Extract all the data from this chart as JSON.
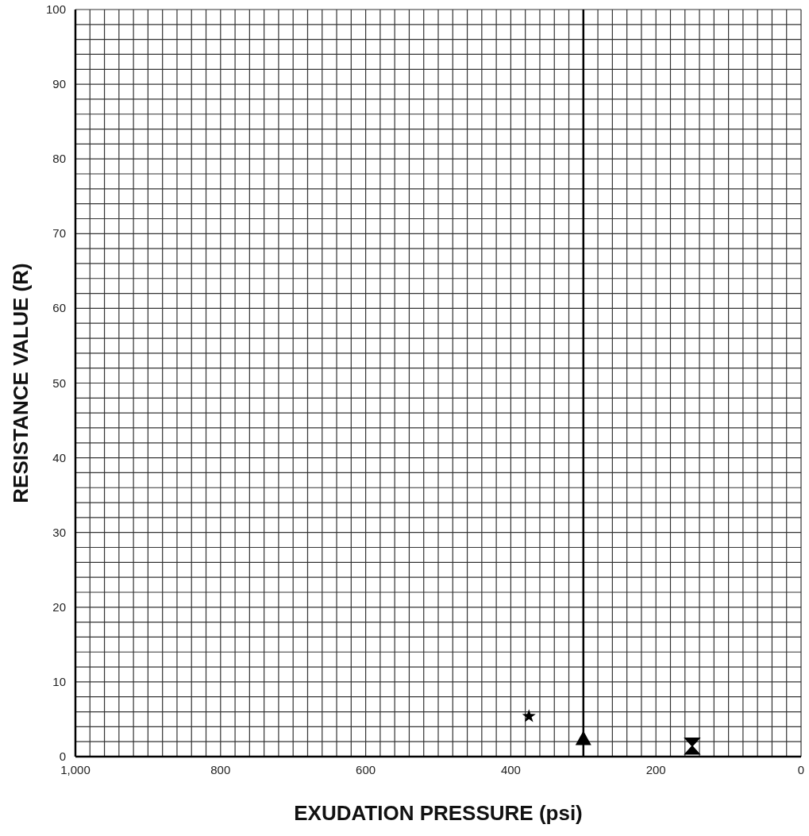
{
  "chart_data": {
    "type": "scatter",
    "xlabel": "EXUDATION PRESSURE (psi)",
    "ylabel": "RESISTANCE VALUE (R)",
    "xlim": [
      1000,
      0
    ],
    "ylim": [
      0,
      100
    ],
    "xticks": [
      {
        "value": 1000,
        "label": "1,000"
      },
      {
        "value": 980,
        "label": null
      },
      {
        "value": 960,
        "label": null
      },
      {
        "value": 940,
        "label": null
      },
      {
        "value": 920,
        "label": null
      },
      {
        "value": 900,
        "label": null
      },
      {
        "value": 880,
        "label": null
      },
      {
        "value": 860,
        "label": null
      },
      {
        "value": 840,
        "label": null
      },
      {
        "value": 820,
        "label": null
      },
      800,
      {
        "value": 780,
        "label": null
      },
      {
        "value": 760,
        "label": null
      },
      {
        "value": 740,
        "label": null
      },
      {
        "value": 720,
        "label": null
      },
      {
        "value": 700,
        "label": null
      },
      {
        "value": 680,
        "label": null
      },
      {
        "value": 660,
        "label": null
      },
      {
        "value": 640,
        "label": null
      },
      {
        "value": 620,
        "label": null
      },
      600,
      {
        "value": 580,
        "label": null
      },
      {
        "value": 560,
        "label": null
      },
      {
        "value": 540,
        "label": null
      },
      {
        "value": 520,
        "label": null
      },
      {
        "value": 500,
        "label": null
      },
      {
        "value": 480,
        "label": null
      },
      {
        "value": 460,
        "label": null
      },
      {
        "value": 440,
        "label": null
      },
      {
        "value": 420,
        "label": null
      },
      400,
      {
        "value": 380,
        "label": null
      },
      {
        "value": 360,
        "label": null
      },
      {
        "value": 340,
        "label": null
      },
      {
        "value": 320,
        "label": null
      },
      {
        "value": 300,
        "label": null
      },
      {
        "value": 280,
        "label": null
      },
      {
        "value": 260,
        "label": null
      },
      {
        "value": 240,
        "label": null
      },
      {
        "value": 220,
        "label": null
      },
      200,
      {
        "value": 180,
        "label": null
      },
      {
        "value": 160,
        "label": null
      },
      {
        "value": 140,
        "label": null
      },
      {
        "value": 120,
        "label": null
      },
      {
        "value": 100,
        "label": null
      },
      {
        "value": 80,
        "label": null
      },
      {
        "value": 60,
        "label": null
      },
      {
        "value": 40,
        "label": null
      },
      {
        "value": 20,
        "label": null
      },
      0
    ],
    "yticks": [
      0,
      {
        "value": 2,
        "label": null
      },
      {
        "value": 4,
        "label": null
      },
      {
        "value": 6,
        "label": null
      },
      {
        "value": 8,
        "label": null
      },
      10,
      {
        "value": 12,
        "label": null
      },
      {
        "value": 14,
        "label": null
      },
      {
        "value": 16,
        "label": null
      },
      {
        "value": 18,
        "label": null
      },
      20,
      {
        "value": 22,
        "label": null
      },
      {
        "value": 24,
        "label": null
      },
      {
        "value": 26,
        "label": null
      },
      {
        "value": 28,
        "label": null
      },
      30,
      {
        "value": 32,
        "label": null
      },
      {
        "value": 34,
        "label": null
      },
      {
        "value": 36,
        "label": null
      },
      {
        "value": 38,
        "label": null
      },
      40,
      {
        "value": 42,
        "label": null
      },
      {
        "value": 44,
        "label": null
      },
      {
        "value": 46,
        "label": null
      },
      {
        "value": 48,
        "label": null
      },
      50,
      {
        "value": 52,
        "label": null
      },
      {
        "value": 54,
        "label": null
      },
      {
        "value": 56,
        "label": null
      },
      {
        "value": 58,
        "label": null
      },
      60,
      {
        "value": 62,
        "label": null
      },
      {
        "value": 64,
        "label": null
      },
      {
        "value": 66,
        "label": null
      },
      {
        "value": 68,
        "label": null
      },
      70,
      {
        "value": 72,
        "label": null
      },
      {
        "value": 74,
        "label": null
      },
      {
        "value": 76,
        "label": null
      },
      {
        "value": 78,
        "label": null
      },
      80,
      {
        "value": 82,
        "label": null
      },
      {
        "value": 84,
        "label": null
      },
      {
        "value": 86,
        "label": null
      },
      {
        "value": 88,
        "label": null
      },
      90,
      {
        "value": 92,
        "label": null
      },
      {
        "value": 94,
        "label": null
      },
      {
        "value": 96,
        "label": null
      },
      {
        "value": 98,
        "label": null
      },
      100
    ],
    "grid": true,
    "series": [
      {
        "color": "#000000",
        "marker": "star",
        "x": [
          375
        ],
        "values": [
          5.4
        ]
      },
      {
        "color": "#000000",
        "marker": "triangle",
        "x": [
          300
        ],
        "values": [
          2.4
        ]
      },
      {
        "color": "#000000",
        "x": [
          150
        ],
        "values": [
          1.4
        ]
      }
    ],
    "ref_lines": [
      {
        "axis": "x",
        "value": 300,
        "color": "#000000",
        "line_style": "solid"
      }
    ]
  }
}
